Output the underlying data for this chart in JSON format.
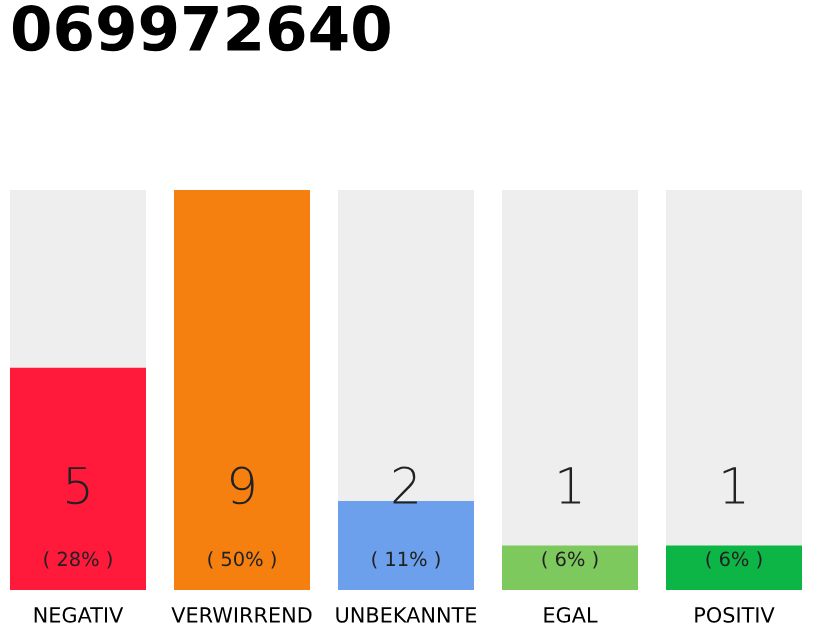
{
  "chart_data": {
    "type": "bar",
    "title": "069972640",
    "categories": [
      "NEGATIV",
      "VERWIRREND",
      "UNBEKANNTE",
      "EGAL",
      "POSITIV"
    ],
    "values": [
      5,
      9,
      2,
      1,
      1
    ],
    "colors": [
      "#ff1a3c",
      "#f57f0f",
      "#6ca0ec",
      "#7dc95e",
      "#0cb545"
    ],
    "value_labels": [
      "5\n( 28% )",
      "9\n( 50% )",
      "2\n( 11% )",
      "1\n( 6% )",
      "1\n( 6% )"
    ],
    "grid": false,
    "legend": false
  }
}
